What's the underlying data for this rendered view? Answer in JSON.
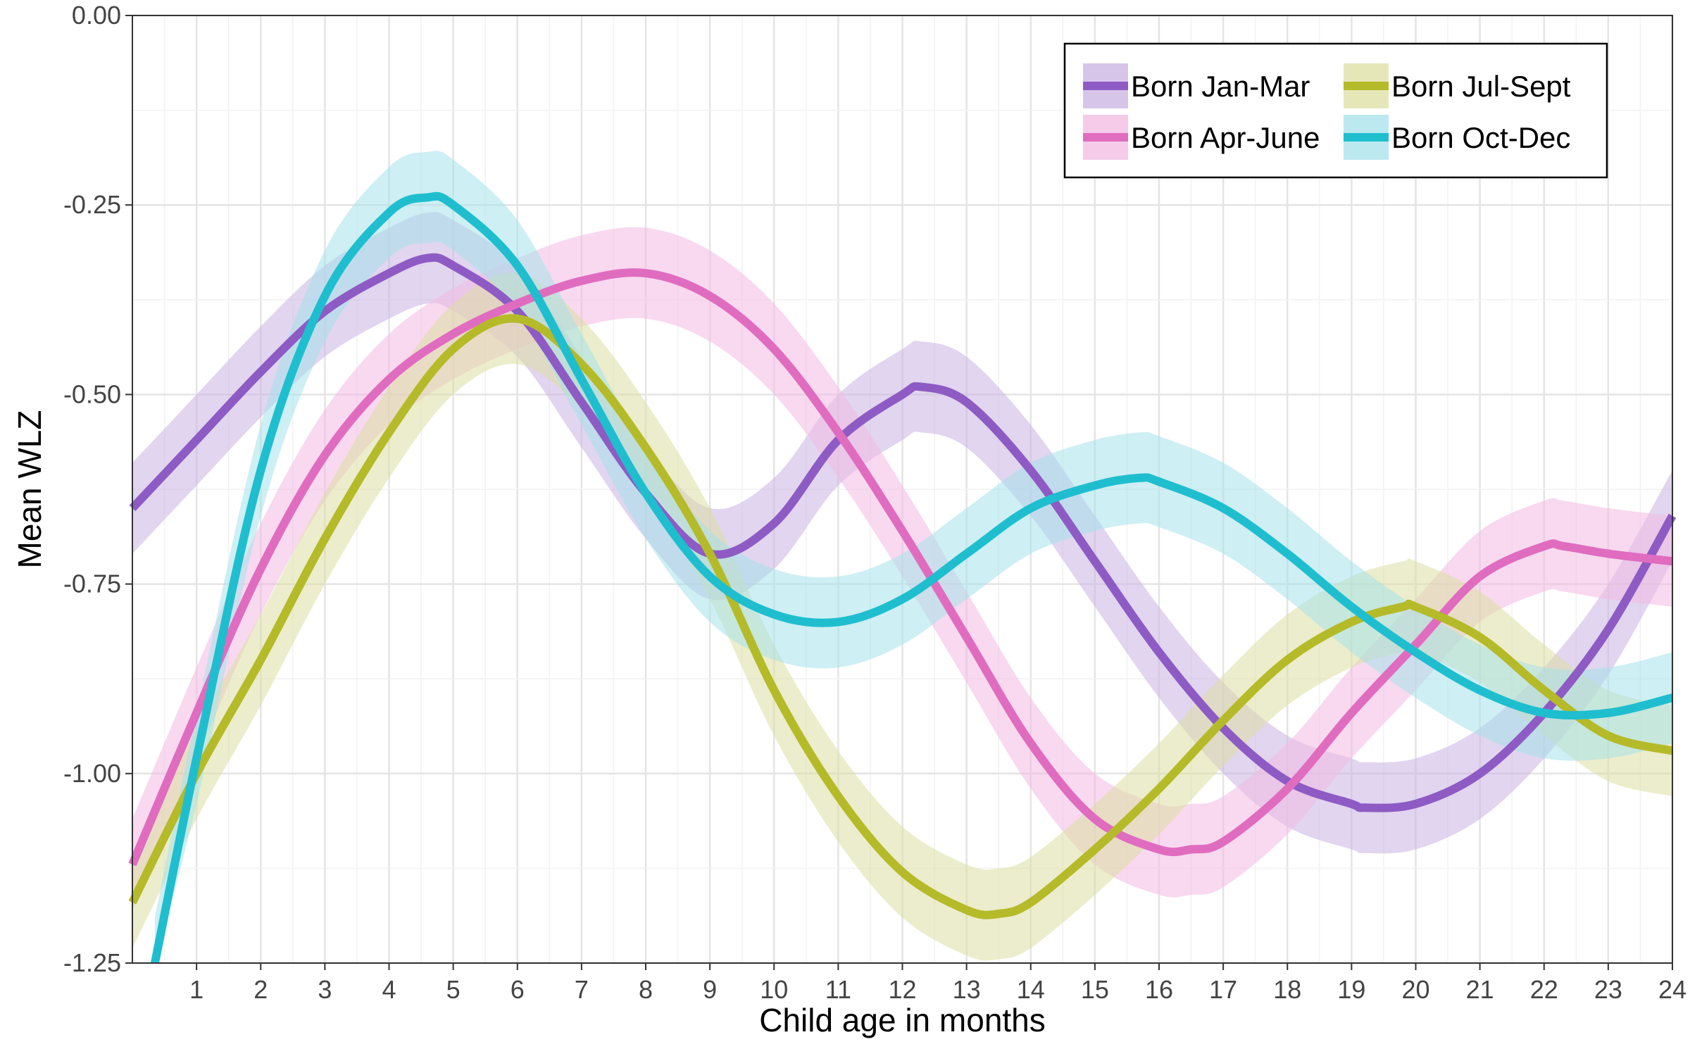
{
  "chart_data": {
    "type": "line",
    "title": "",
    "xlabel": "Child age in months",
    "ylabel": "Mean WLZ",
    "xlim": [
      0,
      24
    ],
    "ylim": [
      -1.25,
      0.0
    ],
    "xticks": [
      1,
      2,
      3,
      4,
      5,
      6,
      7,
      8,
      9,
      10,
      11,
      12,
      13,
      14,
      15,
      16,
      17,
      18,
      19,
      20,
      21,
      22,
      23,
      24
    ],
    "yticks": [
      0.0,
      -0.25,
      -0.5,
      -0.75,
      -1.0,
      -1.25
    ],
    "ytick_labels": [
      "0.00",
      "-0.25",
      "-0.50",
      "-0.75",
      "-1.00",
      "-1.25"
    ],
    "grid": true,
    "legend_position": "top-right",
    "band_halfwidth": 0.06,
    "series": [
      {
        "name": "Born Jan-Mar",
        "color": "#8E5BC4",
        "band_color": "#C9B2E1",
        "x": [
          0,
          1,
          2,
          3,
          4,
          4.6,
          5,
          6,
          7,
          8,
          9,
          10,
          11,
          12,
          12.3,
          13,
          14,
          15,
          16,
          17,
          18,
          19,
          19.2,
          20,
          21,
          22,
          23,
          24
        ],
        "y": [
          -0.65,
          -0.56,
          -0.47,
          -0.39,
          -0.34,
          -0.32,
          -0.33,
          -0.39,
          -0.51,
          -0.63,
          -0.71,
          -0.67,
          -0.56,
          -0.5,
          -0.49,
          -0.51,
          -0.6,
          -0.72,
          -0.84,
          -0.94,
          -1.01,
          -1.04,
          -1.045,
          -1.04,
          -1.0,
          -0.92,
          -0.81,
          -0.66
        ]
      },
      {
        "name": "Born Apr-June",
        "color": "#E06CC0",
        "band_color": "#F2B9E1",
        "x": [
          0,
          1,
          2,
          3,
          4,
          5,
          6,
          7,
          8,
          9,
          10,
          11,
          12,
          13,
          14,
          15,
          16,
          16.5,
          17,
          18,
          19,
          20,
          21,
          22,
          22.3,
          23,
          24
        ],
        "y": [
          -1.12,
          -0.92,
          -0.73,
          -0.58,
          -0.48,
          -0.42,
          -0.38,
          -0.35,
          -0.34,
          -0.37,
          -0.44,
          -0.55,
          -0.68,
          -0.82,
          -0.96,
          -1.06,
          -1.1,
          -1.1,
          -1.09,
          -1.02,
          -0.92,
          -0.83,
          -0.74,
          -0.7,
          -0.7,
          -0.71,
          -0.72
        ]
      },
      {
        "name": "Born Jul-Sept",
        "color": "#B5BA29",
        "band_color": "#DDDFA2",
        "x": [
          0,
          1,
          2,
          3,
          4,
          5,
          6,
          7,
          8,
          9,
          10,
          11,
          12,
          13,
          13.5,
          14,
          15,
          16,
          17,
          18,
          19,
          19.8,
          20,
          21,
          22,
          23,
          24
        ],
        "y": [
          -1.17,
          -1.0,
          -0.85,
          -0.69,
          -0.55,
          -0.44,
          -0.4,
          -0.46,
          -0.57,
          -0.71,
          -0.89,
          -1.03,
          -1.13,
          -1.18,
          -1.185,
          -1.17,
          -1.1,
          -1.02,
          -0.93,
          -0.85,
          -0.8,
          -0.78,
          -0.78,
          -0.82,
          -0.89,
          -0.95,
          -0.97
        ]
      },
      {
        "name": "Born Oct-Dec",
        "color": "#1FBECF",
        "band_color": "#A5E2EA",
        "x": [
          0.35,
          1,
          2,
          3,
          4,
          4.6,
          5,
          6,
          7,
          8,
          9,
          10,
          11,
          12,
          13,
          14,
          15,
          15.7,
          16,
          17,
          18,
          19,
          20,
          21,
          22,
          23,
          24
        ],
        "y": [
          -1.25,
          -0.98,
          -0.6,
          -0.37,
          -0.26,
          -0.24,
          -0.25,
          -0.33,
          -0.48,
          -0.63,
          -0.74,
          -0.79,
          -0.8,
          -0.77,
          -0.71,
          -0.65,
          -0.62,
          -0.61,
          -0.615,
          -0.65,
          -0.71,
          -0.78,
          -0.84,
          -0.89,
          -0.92,
          -0.92,
          -0.9
        ]
      }
    ]
  }
}
